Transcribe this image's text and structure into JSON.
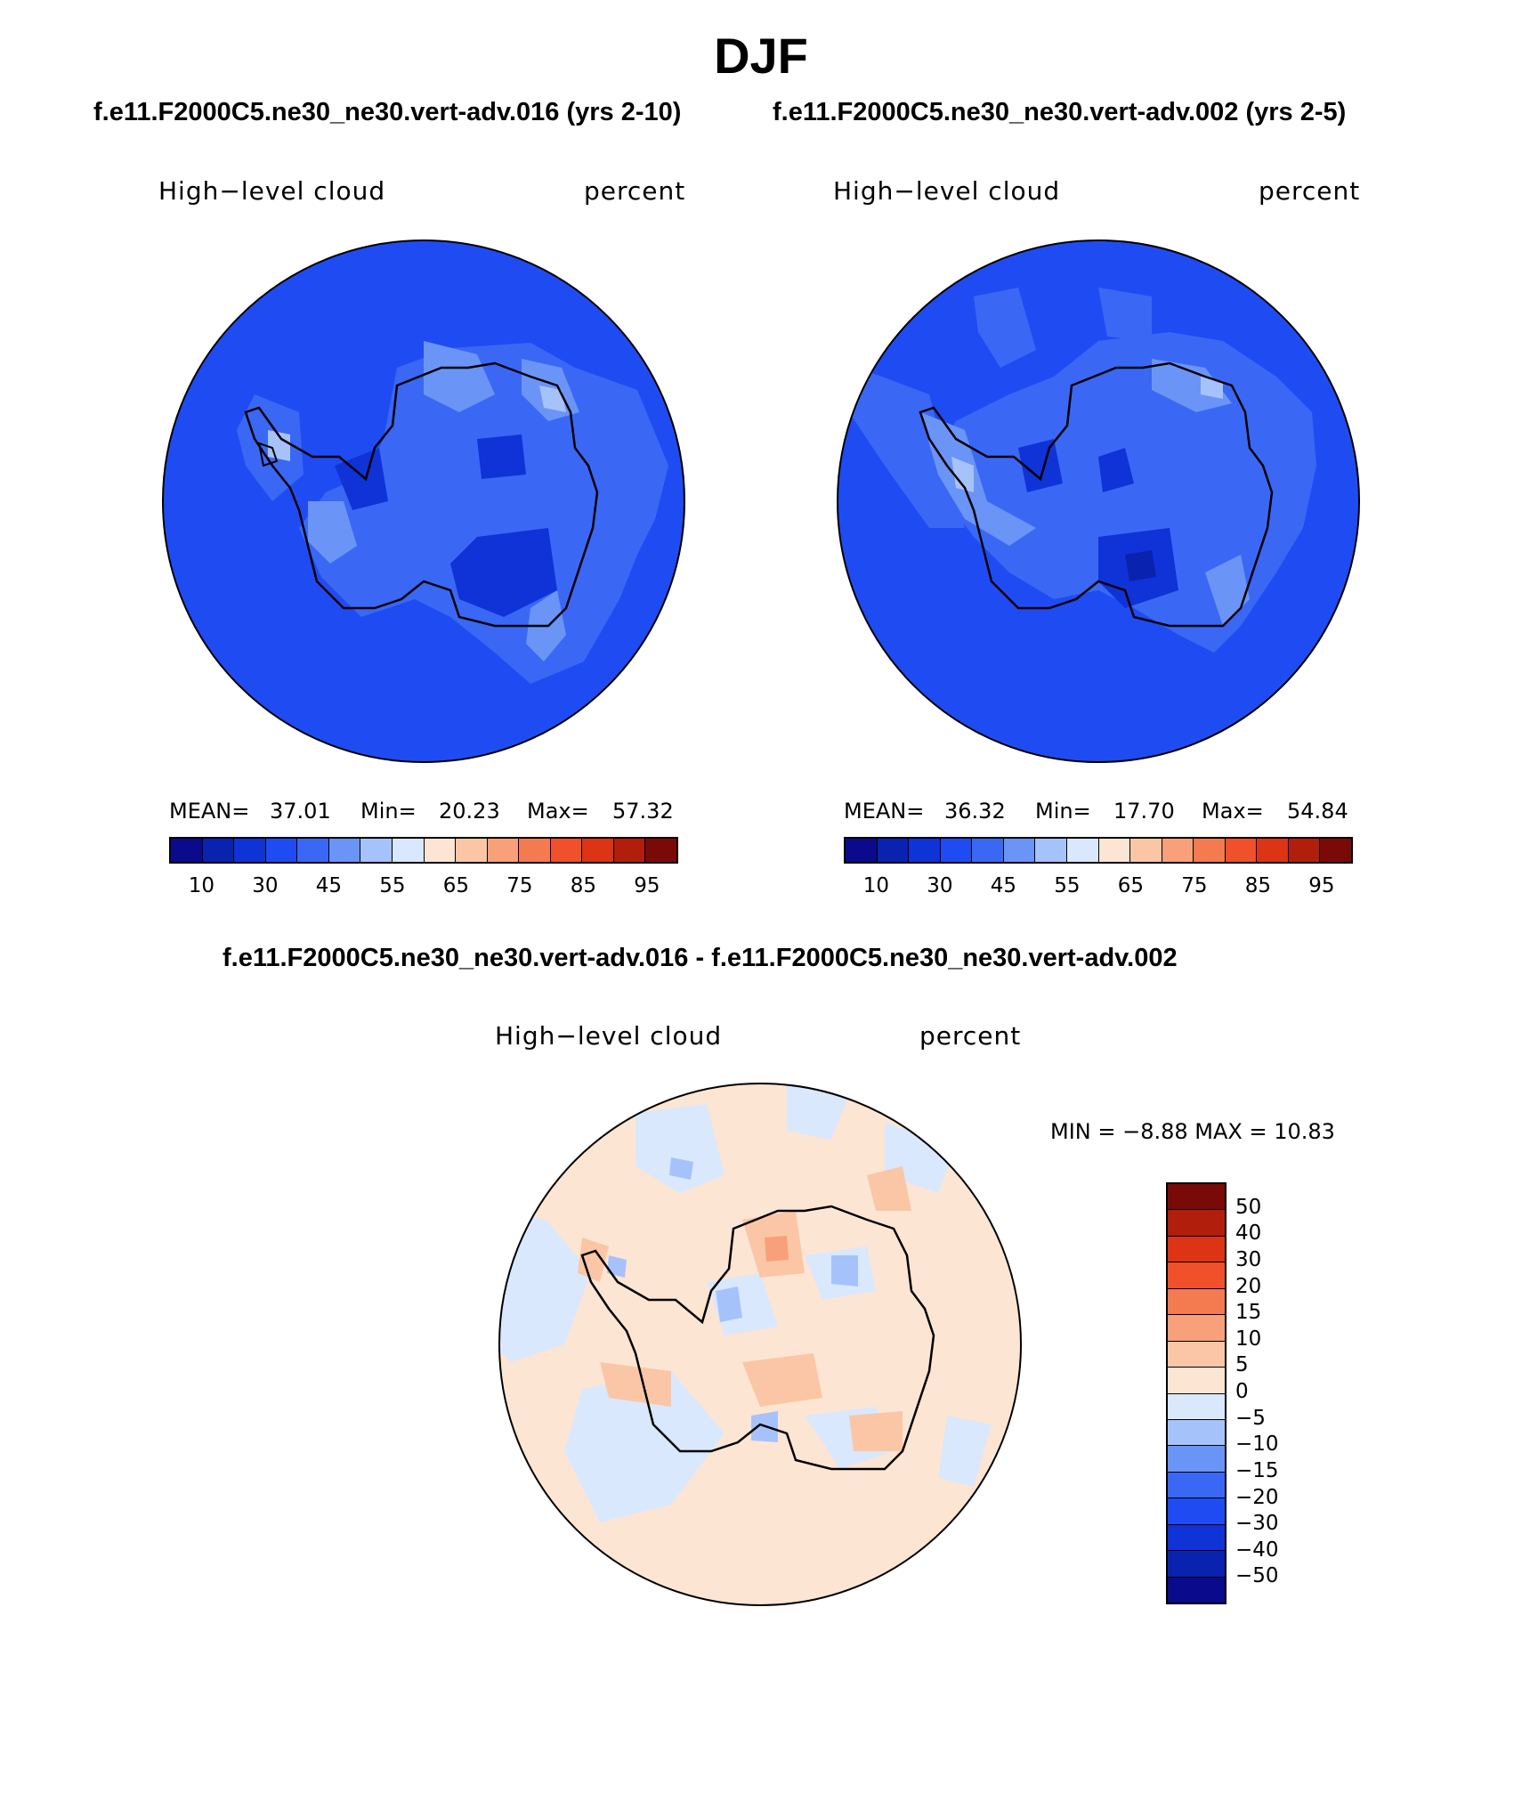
{
  "title": "DJF",
  "palette_abs": [
    "#0a0a8c",
    "#0a22b0",
    "#0f33d6",
    "#1f4cf2",
    "#3a68f5",
    "#6b94f7",
    "#a6c2fb",
    "#d9e8fd",
    "#fde5d3",
    "#fbc6a6",
    "#f8a07a",
    "#f47a4f",
    "#f0502a",
    "#dc3414",
    "#b21e0c",
    "#7a0a08"
  ],
  "palette_diff": [
    "#7a0a08",
    "#b21e0c",
    "#dc3414",
    "#f0502a",
    "#f47a4f",
    "#f8a07a",
    "#fbc6a6",
    "#fde5d3",
    "#d9e8fd",
    "#a6c2fb",
    "#6b94f7",
    "#3a68f5",
    "#1f4cf2",
    "#0f33d6",
    "#0a22b0",
    "#0a0a8c"
  ],
  "panel_left": {
    "case": "f.e11.F2000C5.ne30_ne30.vert-adv.016 (yrs 2-10)",
    "variable": "High−level cloud",
    "units": "percent",
    "mean_label": "MEAN=",
    "mean": "37.01",
    "min_label": "Min=",
    "min": "20.23",
    "max_label": "Max=",
    "max": "57.32",
    "ticks": [
      "10",
      "30",
      "45",
      "55",
      "65",
      "75",
      "85",
      "95"
    ]
  },
  "panel_right": {
    "case": "f.e11.F2000C5.ne30_ne30.vert-adv.002 (yrs 2-5)",
    "variable": "High−level cloud",
    "units": "percent",
    "mean_label": "MEAN=",
    "mean": "36.32",
    "min_label": "Min=",
    "min": "17.70",
    "max_label": "Max=",
    "max": "54.84",
    "ticks": [
      "10",
      "30",
      "45",
      "55",
      "65",
      "75",
      "85",
      "95"
    ]
  },
  "panel_diff": {
    "case": "f.e11.F2000C5.ne30_ne30.vert-adv.016 - f.e11.F2000C5.ne30_ne30.vert-adv.002",
    "variable": "High−level cloud",
    "units": "percent",
    "minmax": "MIN =   −8.88 MAX =   10.83",
    "ticks": [
      "50",
      "40",
      "30",
      "20",
      "15",
      "10",
      "5",
      "0",
      "−5",
      "−10",
      "−15",
      "−20",
      "−30",
      "−40",
      "−50"
    ]
  }
}
